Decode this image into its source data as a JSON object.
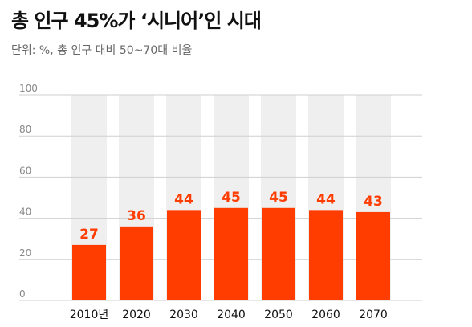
{
  "title": "총 인구 45%가 ‘시니어’인 시대",
  "subtitle": "단위: %, 총 인구 대비 50~70대 비율",
  "colors": {
    "bar": "#ff3d00",
    "label": "#ff3d00",
    "column_band": "#efefef",
    "grid": "#cfcfcf",
    "tick": "#888888",
    "axis_label": "#111111"
  },
  "chart_data": {
    "type": "bar",
    "title": "총 인구 45%가 ‘시니어’인 시대",
    "subtitle": "단위: %, 총 인구 대비 50~70대 비율",
    "categories": [
      "2010년",
      "2020",
      "2030",
      "2040",
      "2050",
      "2060",
      "2070"
    ],
    "values": [
      27,
      36,
      44,
      45,
      45,
      44,
      43
    ],
    "data_labels": [
      "27",
      "36",
      "44",
      "45",
      "45",
      "44",
      "43"
    ],
    "yticks": [
      0,
      20,
      40,
      60,
      80,
      100
    ],
    "ylim": [
      0,
      100
    ],
    "xlabel": "",
    "ylabel": "",
    "grid": true,
    "legend": "none"
  }
}
